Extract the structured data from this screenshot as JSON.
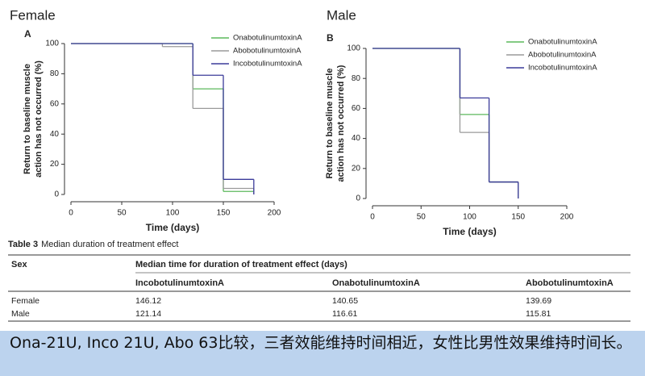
{
  "chart_data": [
    {
      "type": "step",
      "title": "Female",
      "panel": "A",
      "xlabel": "Time (days)",
      "ylabel": [
        "Return to baseline muscle",
        "action has not occurred (%)"
      ],
      "xlim": [
        0,
        200
      ],
      "ylim": [
        0,
        100
      ],
      "xticks": [
        0,
        50,
        100,
        150,
        200
      ],
      "yticks": [
        0,
        20,
        40,
        60,
        80,
        100
      ],
      "series": [
        {
          "name": "OnabotulinumtoxinA",
          "color": "#5cb85c",
          "x": [
            0,
            120,
            150,
            180
          ],
          "values": [
            100,
            70,
            2,
            2
          ]
        },
        {
          "name": "AbobotulinumtoxinA",
          "color": "#9a9a9a",
          "x": [
            0,
            90,
            120,
            150,
            180
          ],
          "values": [
            100,
            98,
            57,
            4,
            0
          ]
        },
        {
          "name": "IncobotulinumtoxinA",
          "color": "#3b3b9a",
          "x": [
            0,
            120,
            150,
            180
          ],
          "values": [
            100,
            79,
            10,
            0
          ]
        }
      ]
    },
    {
      "type": "step",
      "title": "Male",
      "panel": "B",
      "xlabel": "Time (days)",
      "ylabel": [
        "Return to baseline muscle",
        "action has not occurred (%)"
      ],
      "xlim": [
        0,
        200
      ],
      "ylim": [
        0,
        100
      ],
      "xticks": [
        0,
        50,
        100,
        150,
        200
      ],
      "yticks": [
        0,
        20,
        40,
        60,
        80,
        100
      ],
      "series": [
        {
          "name": "OnabotulinumtoxinA",
          "color": "#5cb85c",
          "x": [
            0,
            90,
            120,
            150
          ],
          "values": [
            100,
            56,
            11,
            0
          ]
        },
        {
          "name": "AbobotulinumtoxinA",
          "color": "#9a9a9a",
          "x": [
            0,
            90,
            120,
            150
          ],
          "values": [
            100,
            44,
            11,
            0
          ]
        },
        {
          "name": "IncobotulinumtoxinA",
          "color": "#3b3b9a",
          "x": [
            0,
            90,
            120,
            150
          ],
          "values": [
            100,
            67,
            11,
            0
          ]
        }
      ]
    }
  ],
  "table": {
    "label": "Table 3",
    "title": "Median duration of treatment effect",
    "header": [
      "Sex",
      "Median time for duration of treatment effect (days)"
    ],
    "columns": [
      "IncobotulinumtoxinA",
      "OnabotulinumtoxinA",
      "AbobotulinumtoxinA"
    ],
    "rows": [
      [
        "Female",
        146.12,
        140.65,
        139.69
      ],
      [
        "Male",
        121.14,
        116.61,
        115.81
      ]
    ]
  },
  "caption": "Ona-21U, Inco 21U, Abo 63比较，三者效能维持时间相近，女性比男性效果维持时间长。"
}
